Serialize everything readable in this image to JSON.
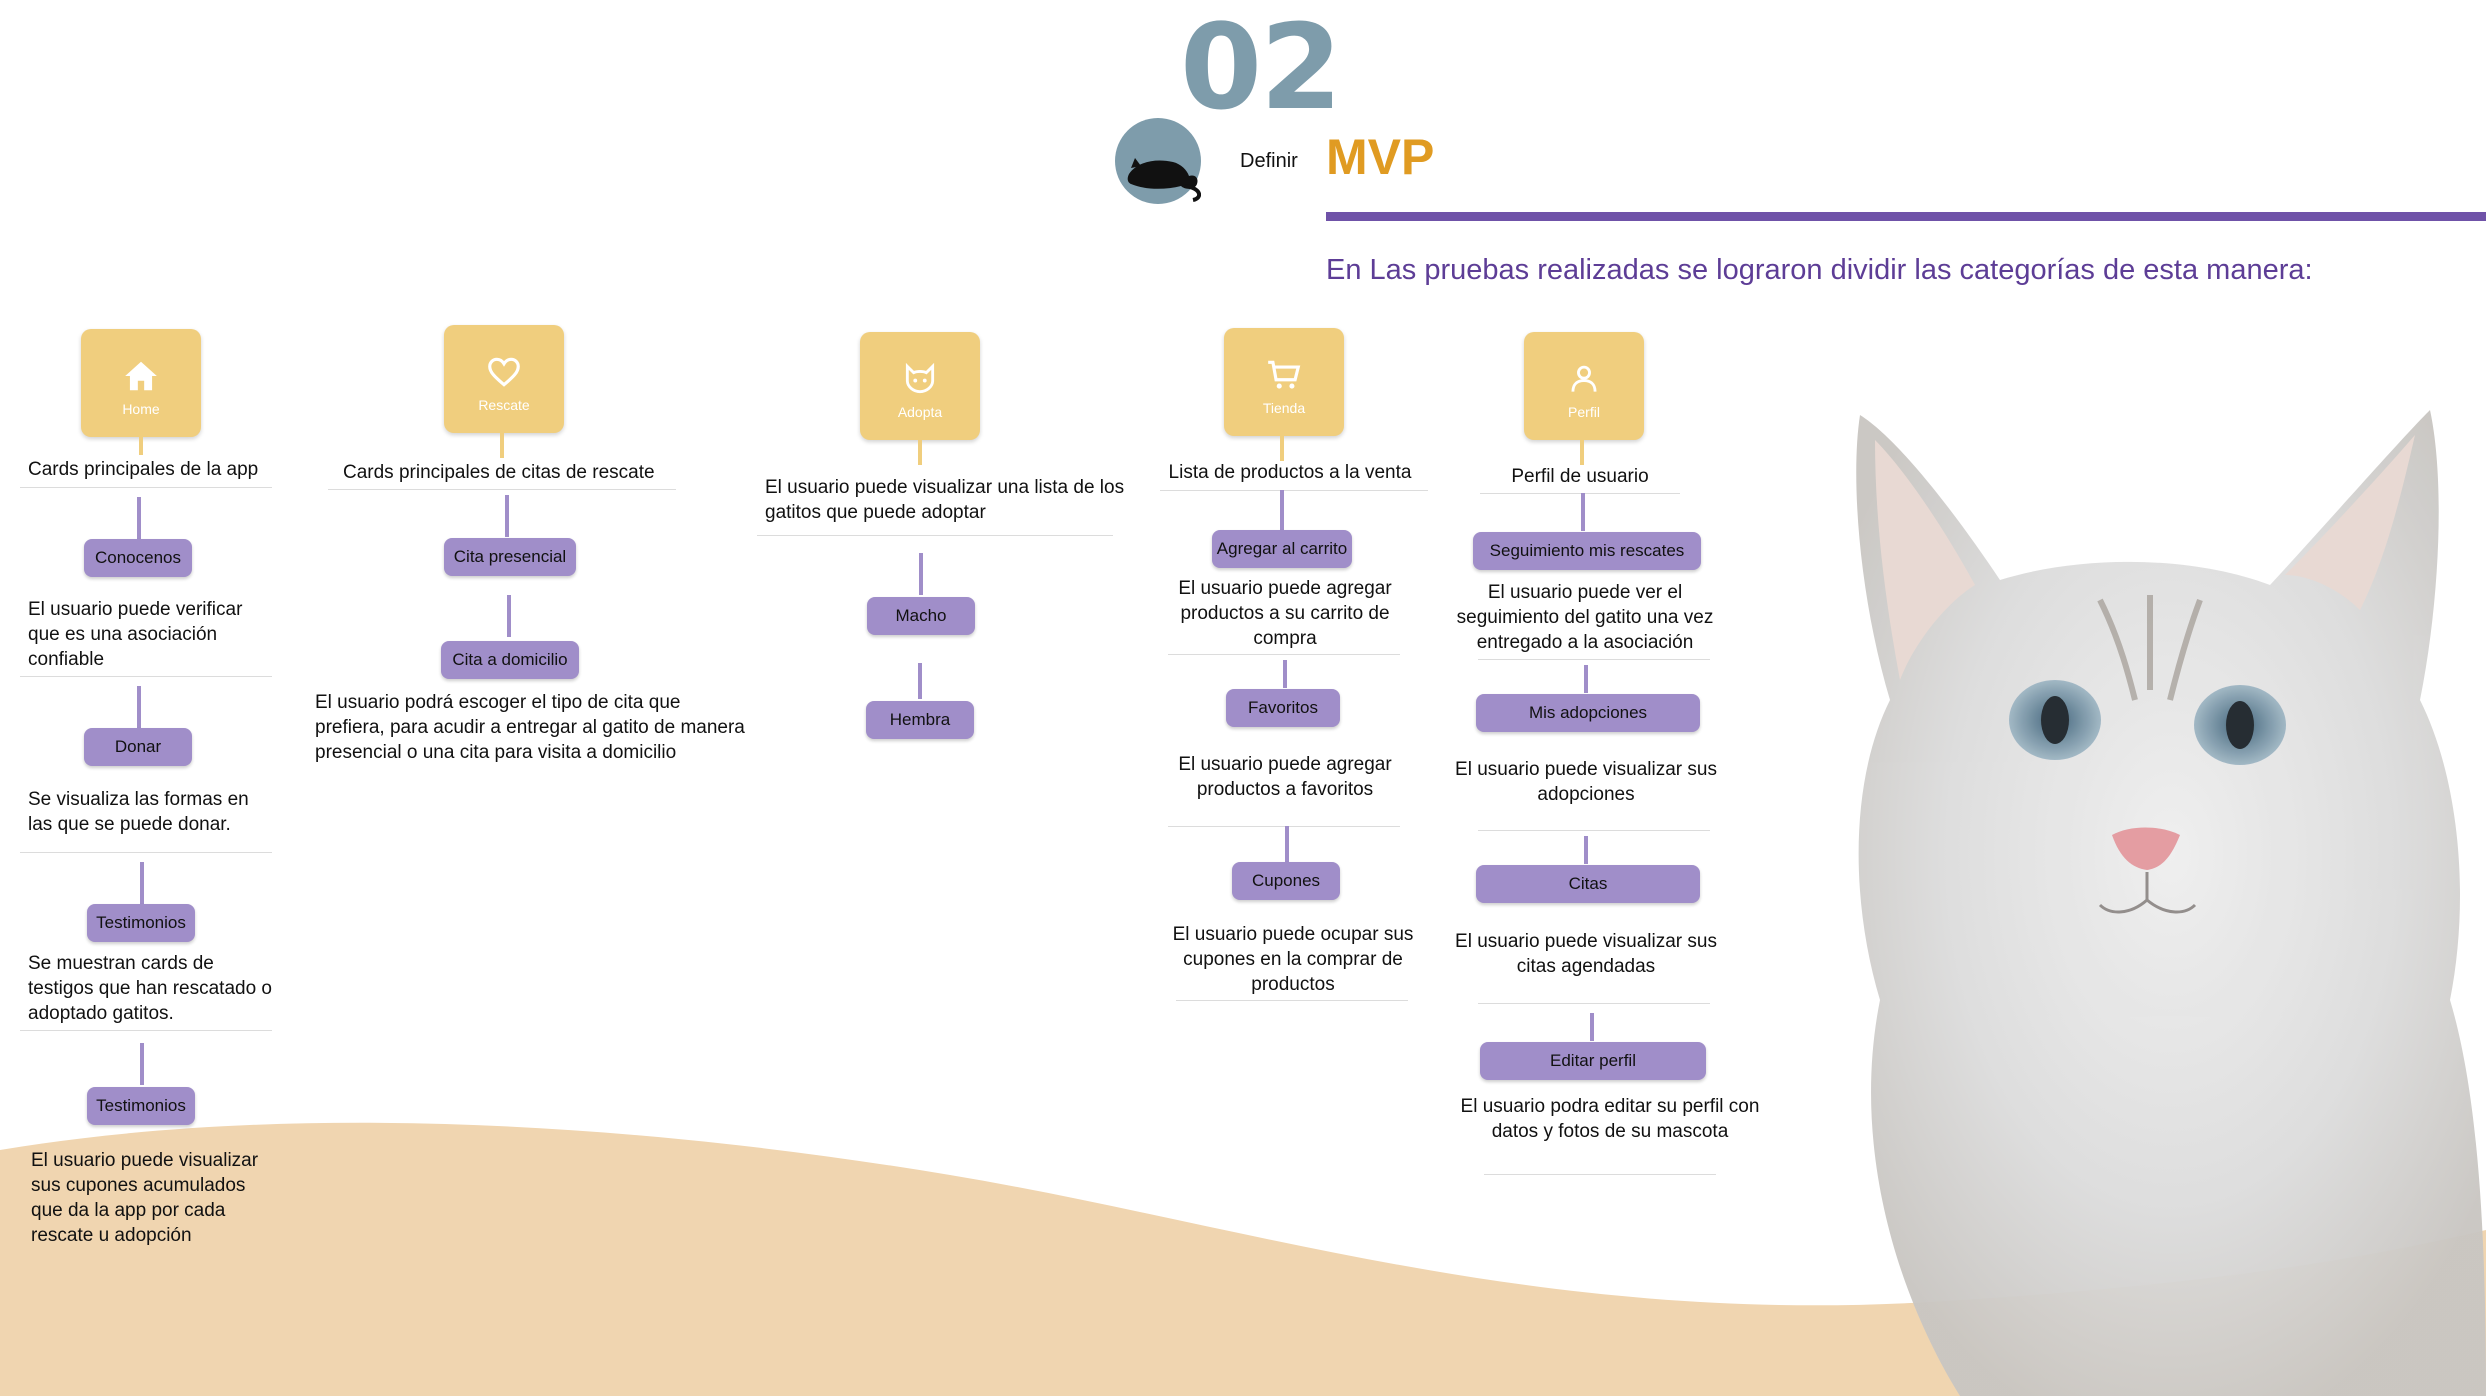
{
  "header": {
    "step_number": "02",
    "step_label": "Definir",
    "title": "MVP",
    "subtitle": "En Las pruebas realizadas se lograron dividir las categorías de esta manera:"
  },
  "colors": {
    "accent_orange": "#e09b22",
    "accent_purple": "#6f52a8",
    "card_yellow": "#f0ce7e",
    "pill_purple": "#a08ec9",
    "step_blue": "#7e9cab",
    "wave_beige": "#f0d5b0"
  },
  "columns": [
    {
      "category": "Home",
      "icon": "home-icon",
      "description": "Cards principales de la app",
      "items": [
        {
          "label": "Conocenos",
          "text": "El usuario puede verificar que es una asociación confiable"
        },
        {
          "label": "Donar",
          "text": "Se visualiza las formas en las que se puede donar."
        },
        {
          "label": "Testimonios",
          "text": "Se muestran cards de testigos que han rescatado o adoptado gatitos."
        },
        {
          "label": "Testimonios",
          "text": "El usuario puede visualizar sus cupones acumulados que da la app por cada rescate u adopción"
        }
      ]
    },
    {
      "category": "Rescate",
      "icon": "heart-icon",
      "description": "Cards principales de citas de rescate",
      "items": [
        {
          "label": "Cita presencial"
        },
        {
          "label": "Cita a domicilio",
          "text": "El usuario podrá escoger el tipo de cita que prefiera, para acudir a entregar al gatito de manera presencial o una cita para visita a domicilio"
        }
      ]
    },
    {
      "category": "Adopta",
      "icon": "cat-icon",
      "description": "El usuario puede visualizar una lista de los gatitos que puede adoptar",
      "items": [
        {
          "label": "Macho"
        },
        {
          "label": "Hembra"
        }
      ]
    },
    {
      "category": "Tienda",
      "icon": "cart-icon",
      "description": "Lista de productos a la venta",
      "items": [
        {
          "label": "Agregar al carrito",
          "text": "El usuario puede agregar productos a su carrito de compra"
        },
        {
          "label": "Favoritos",
          "text": "El usuario puede agregar productos a favoritos"
        },
        {
          "label": "Cupones",
          "text": "El usuario puede ocupar sus cupones en la comprar de productos"
        }
      ]
    },
    {
      "category": "Perfil",
      "icon": "user-icon",
      "description": "Perfil de usuario",
      "items": [
        {
          "label": "Seguimiento mis rescates",
          "text": "El usuario puede ver el seguimiento del gatito una vez entregado a la asociación"
        },
        {
          "label": "Mis adopciones",
          "text": "El usuario puede visualizar sus adopciones"
        },
        {
          "label": "Citas",
          "text": "El usuario puede visualizar sus citas agendadas"
        },
        {
          "label": "Editar perfil",
          "text": "El usuario podra editar su perfil con datos y fotos de su mascota"
        }
      ]
    }
  ]
}
